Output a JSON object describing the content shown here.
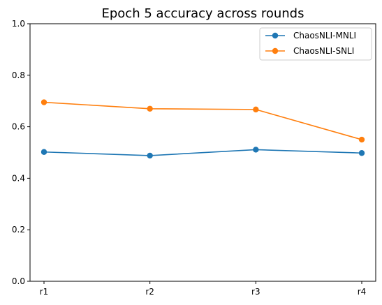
{
  "chart_data": {
    "type": "line",
    "title": "Epoch 5 accuracy across rounds",
    "xlabel": "",
    "ylabel": "",
    "categories": [
      "r1",
      "r2",
      "r3",
      "r4"
    ],
    "ylim": [
      0.0,
      1.0
    ],
    "yticks": [
      "0.0",
      "0.2",
      "0.4",
      "0.6",
      "0.8",
      "1.0"
    ],
    "grid": false,
    "legend_position": "top-right",
    "series": [
      {
        "name": "ChaosNLI-MNLI",
        "color": "#1f77b4",
        "marker": "circle",
        "values": [
          0.502,
          0.488,
          0.511,
          0.498
        ]
      },
      {
        "name": "ChaosNLI-SNLI",
        "color": "#ff7f0e",
        "marker": "circle",
        "values": [
          0.695,
          0.67,
          0.667,
          0.55
        ]
      }
    ]
  }
}
